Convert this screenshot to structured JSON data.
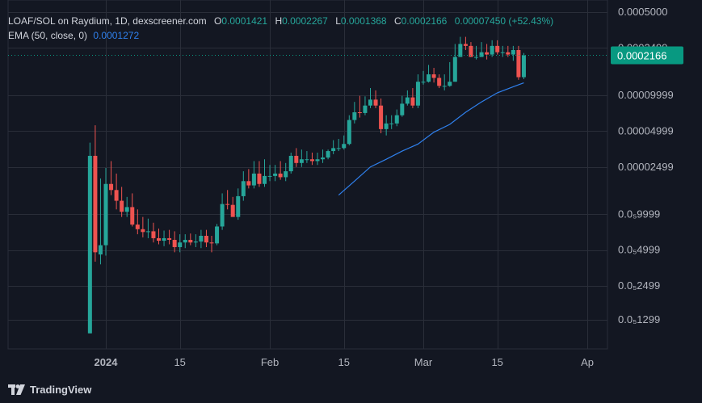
{
  "legend": {
    "pair": "LOAF/SOL on Raydium, 1D, dexscreener.com",
    "o_label": "O",
    "o_value": "0.0001421",
    "h_label": "H",
    "h_value": "0.0002267",
    "l_label": "L",
    "l_value": "0.0001368",
    "c_label": "C",
    "c_value": "0.0002166",
    "change": "0.00007450 (+52.43%)",
    "ema_label": "EMA (50, close, 0)",
    "ema_value": "0.0001272"
  },
  "price_tag": {
    "value": "0.0002166",
    "color": "#089981"
  },
  "brand": {
    "name": "TradingView"
  },
  "colors": {
    "up": "#26a69a",
    "down": "#ef5350",
    "ema": "#2f80ed",
    "grid": "#2a2e39",
    "bg": "#131722"
  },
  "chart_data": {
    "type": "candlestick",
    "y_scale": "log",
    "y_tick_labels": [
      "0.0005000",
      "0.0002499",
      "0.00009999",
      "0.00004999",
      "0.00002499",
      "0.0₅9999",
      "0.0₅4999",
      "0.0₅2499",
      "0.0₅1299"
    ],
    "y_tick_values": [
      0.0005,
      0.0002499,
      9.999e-05,
      4.999e-05,
      2.499e-05,
      9.999e-06,
      4.999e-06,
      2.499e-06,
      1.299e-06
    ],
    "x_tick_labels": [
      "2024",
      "15",
      "Feb",
      "15",
      "Mar",
      "15",
      "Ap"
    ],
    "x_tick_dates": [
      "2024-01-01",
      "2024-01-15",
      "2024-02-01",
      "2024-02-15",
      "2024-03-01",
      "2024-03-15",
      "2024-04-01"
    ],
    "series": [
      {
        "name": "LOAF/SOL",
        "dates": [
          "2023-12-29",
          "2023-12-30",
          "2023-12-31",
          "2024-01-01",
          "2024-01-02",
          "2024-01-03",
          "2024-01-04",
          "2024-01-05",
          "2024-01-06",
          "2024-01-07",
          "2024-01-08",
          "2024-01-09",
          "2024-01-10",
          "2024-01-11",
          "2024-01-12",
          "2024-01-13",
          "2024-01-14",
          "2024-01-15",
          "2024-01-16",
          "2024-01-17",
          "2024-01-18",
          "2024-01-19",
          "2024-01-20",
          "2024-01-21",
          "2024-01-22",
          "2024-01-23",
          "2024-01-24",
          "2024-01-25",
          "2024-01-26",
          "2024-01-27",
          "2024-01-28",
          "2024-01-29",
          "2024-01-30",
          "2024-01-31",
          "2024-02-01",
          "2024-02-02",
          "2024-02-03",
          "2024-02-04",
          "2024-02-05",
          "2024-02-06",
          "2024-02-07",
          "2024-02-08",
          "2024-02-09",
          "2024-02-10",
          "2024-02-11",
          "2024-02-12",
          "2024-02-13",
          "2024-02-14",
          "2024-02-15",
          "2024-02-16",
          "2024-02-17",
          "2024-02-18",
          "2024-02-19",
          "2024-02-20",
          "2024-02-21",
          "2024-02-22",
          "2024-02-23",
          "2024-02-24",
          "2024-02-25",
          "2024-02-26",
          "2024-02-27",
          "2024-02-28",
          "2024-02-29",
          "2024-03-01",
          "2024-03-02",
          "2024-03-03",
          "2024-03-04",
          "2024-03-05",
          "2024-03-06",
          "2024-03-07",
          "2024-03-08",
          "2024-03-09",
          "2024-03-10",
          "2024-03-11",
          "2024-03-12",
          "2024-03-13",
          "2024-03-14",
          "2024-03-15",
          "2024-03-16",
          "2024-03-17",
          "2024-03-18",
          "2024-03-19",
          "2024-03-20"
        ],
        "open": [
          1e-06,
          3.1e-05,
          4.6e-06,
          5.5e-06,
          1.8e-05,
          1.6e-05,
          1.3e-05,
          1.05e-05,
          1.15e-05,
          8.2e-06,
          7.5e-06,
          7.1e-06,
          7.2e-06,
          6.3e-06,
          6e-06,
          6.3e-06,
          6.1e-06,
          5.3e-06,
          5.8e-06,
          6.1e-06,
          5.8e-06,
          5.9e-06,
          6.6e-06,
          5.8e-06,
          5.7e-06,
          7.9e-06,
          1.22e-05,
          1.2e-05,
          9.5e-06,
          1.42e-05,
          1.9e-05,
          1.75e-05,
          2.2e-05,
          1.8e-05,
          2.1e-05,
          2.1e-05,
          2.2e-05,
          2.05e-05,
          2.3e-05,
          3.1e-05,
          2.7e-05,
          2.9e-05,
          2.9e-05,
          2.8e-05,
          2.9e-05,
          3e-05,
          3.4e-05,
          3.6e-05,
          3.6e-05,
          3.9e-05,
          6.2e-05,
          7.2e-05,
          7.1e-05,
          8.2e-05,
          9.2e-05,
          8.2e-05,
          5.2e-05,
          5.8e-05,
          5.8e-05,
          6.8e-05,
          8.5e-05,
          9.6e-05,
          8.2e-05,
          0.00013,
          0.00013,
          0.00015,
          0.00014,
          0.00012,
          0.00012,
          0.00013,
          0.00021,
          0.00027,
          0.00026,
          0.00021,
          0.00021,
          0.00023,
          0.00022,
          0.00026,
          0.00023,
          0.00023,
          0.00022,
          0.00024,
          0.000142
        ],
        "high": [
          4e-05,
          5.6e-05,
          2e-05,
          2.45e-05,
          2.8e-05,
          2.2e-05,
          1.7e-05,
          1.4e-05,
          1.5e-05,
          1.1e-05,
          9.5e-06,
          9.2e-06,
          8.5e-06,
          7.6e-06,
          7.3e-06,
          7.4e-06,
          7.2e-06,
          6.8e-06,
          6.8e-06,
          6.9e-06,
          6.8e-06,
          7.4e-06,
          7.4e-06,
          6.6e-06,
          8.3e-06,
          1.5e-05,
          1.6e-05,
          1.4e-05,
          1.65e-05,
          2.3e-05,
          2.4e-05,
          2.8e-05,
          2.8e-05,
          2.9e-05,
          2.6e-05,
          2.6e-05,
          2.8e-05,
          2.7e-05,
          3.3e-05,
          3.6e-05,
          3.5e-05,
          3.4e-05,
          3.3e-05,
          3.3e-05,
          3.5e-05,
          3.5e-05,
          4.2e-05,
          4.3e-05,
          4.6e-05,
          6.8e-05,
          8.8e-05,
          9.9e-05,
          9.8e-05,
          0.000115,
          0.00011,
          9.4e-05,
          6.8e-05,
          6.8e-05,
          7.6e-05,
          9.9e-05,
          0.00011,
          0.000115,
          0.00015,
          0.00016,
          0.00018,
          0.00017,
          0.00015,
          0.00015,
          0.00019,
          0.00027,
          0.00031,
          0.00031,
          0.00028,
          0.00026,
          0.00028,
          0.00027,
          0.00029,
          0.00029,
          0.00026,
          0.00026,
          0.00026,
          0.00026,
          0.0002267
        ],
        "low": [
          1e-06,
          4e-06,
          3.8e-06,
          4.5e-06,
          1.45e-05,
          1.1e-05,
          9.5e-06,
          9.5e-06,
          7.9e-06,
          6.8e-06,
          6.4e-06,
          6.3e-06,
          5.8e-06,
          5.6e-06,
          5.4e-06,
          5.6e-06,
          4.8e-06,
          4.8e-06,
          5.2e-06,
          5.5e-06,
          5.3e-06,
          5.2e-06,
          5.3e-06,
          4.8e-06,
          5.5e-06,
          7.4e-06,
          1.1e-05,
          9.8e-06,
          9e-06,
          1.3e-05,
          1.65e-05,
          1.65e-05,
          1.7e-05,
          1.7e-05,
          1.9e-05,
          1.9e-05,
          1.95e-05,
          1.9e-05,
          2.2e-05,
          2.5e-05,
          2.5e-05,
          2.7e-05,
          2.6e-05,
          2.6e-05,
          2.7e-05,
          2.9e-05,
          3.2e-05,
          3.4e-05,
          3.5e-05,
          3.8e-05,
          5.8e-05,
          6.5e-05,
          6.8e-05,
          7.8e-05,
          7.8e-05,
          4.8e-05,
          4.6e-05,
          5.2e-05,
          5.5e-05,
          6.6e-05,
          8.2e-05,
          7.8e-05,
          7.8e-05,
          0.000123,
          0.000128,
          0.000128,
          0.000115,
          0.00011,
          0.000118,
          0.00013,
          0.00021,
          0.00024,
          0.00021,
          0.0002,
          0.00021,
          0.0002,
          0.00021,
          0.00022,
          0.00021,
          0.00021,
          0.000195,
          0.000135,
          0.0001368
        ],
        "close": [
          3.1e-05,
          4.8e-06,
          5.5e-06,
          1.8e-05,
          1.6e-05,
          1.3e-05,
          1.05e-05,
          1.15e-05,
          8.2e-06,
          7.5e-06,
          7.1e-06,
          7.2e-06,
          6.3e-06,
          6e-06,
          6.3e-06,
          6.1e-06,
          5.3e-06,
          5.8e-06,
          6.1e-06,
          5.8e-06,
          5.9e-06,
          6.6e-06,
          5.8e-06,
          5.7e-06,
          7.9e-06,
          1.22e-05,
          1.2e-05,
          9.5e-06,
          1.42e-05,
          1.9e-05,
          1.75e-05,
          2.2e-05,
          1.8e-05,
          2.1e-05,
          2.1e-05,
          2.2e-05,
          2.05e-05,
          2.3e-05,
          3.1e-05,
          2.7e-05,
          2.9e-05,
          2.9e-05,
          2.8e-05,
          2.9e-05,
          3e-05,
          3.4e-05,
          3.6e-05,
          3.6e-05,
          3.9e-05,
          6.2e-05,
          7.2e-05,
          7.1e-05,
          8.2e-05,
          9.2e-05,
          8.2e-05,
          5.2e-05,
          5.8e-05,
          5.8e-05,
          6.8e-05,
          8.5e-05,
          9.6e-05,
          8.2e-05,
          0.00013,
          0.00013,
          0.00015,
          0.00014,
          0.00012,
          0.00012,
          0.00013,
          0.00021,
          0.00027,
          0.00026,
          0.00021,
          0.00021,
          0.00023,
          0.00022,
          0.00026,
          0.00023,
          0.00023,
          0.00022,
          0.00024,
          0.000142,
          0.0002166
        ]
      },
      {
        "name": "EMA (50, close, 0)",
        "dates": [
          "2024-02-14",
          "2024-02-17",
          "2024-02-20",
          "2024-02-23",
          "2024-02-26",
          "2024-02-29",
          "2024-03-03",
          "2024-03-06",
          "2024-03-09",
          "2024-03-12",
          "2024-03-15",
          "2024-03-18",
          "2024-03-20"
        ],
        "values": [
          1.45e-05,
          1.9e-05,
          2.5e-05,
          2.9e-05,
          3.4e-05,
          3.9e-05,
          4.9e-05,
          5.7e-05,
          7.2e-05,
          8.8e-05,
          0.000105,
          0.000118,
          0.0001272
        ]
      }
    ],
    "last_price": 0.0002166
  }
}
